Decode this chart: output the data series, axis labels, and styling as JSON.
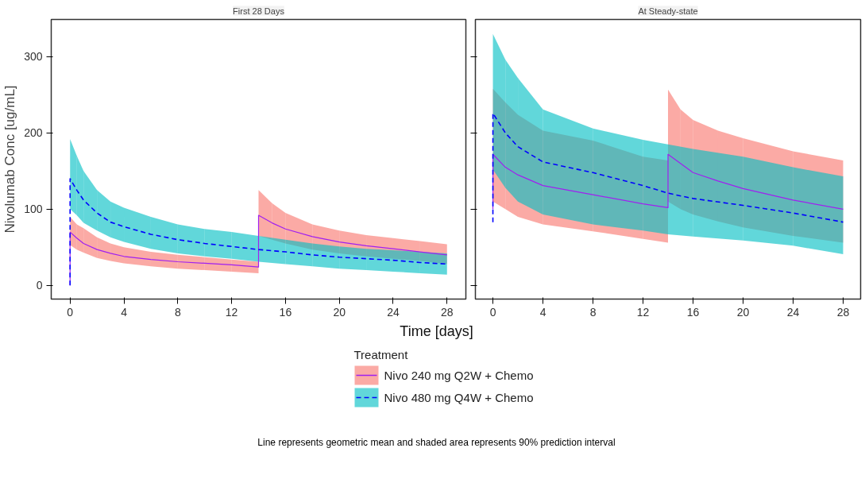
{
  "chart_data": [
    {
      "type": "line",
      "title": "First 28 Days",
      "xlabel": "Time [days]",
      "ylabel": "Nivolumab Conc [ug/mL]",
      "legend_title": "Treatment",
      "legend": "bottom",
      "grid": false,
      "xlim": [
        -1.4,
        29.4
      ],
      "xticks": [
        0,
        4,
        8,
        12,
        16,
        20,
        24,
        28
      ],
      "ylim": [
        -18,
        349
      ],
      "yticks": [
        0,
        100,
        200,
        300
      ],
      "annotations": [
        "Line represents geometric mean and shaded area represents 90% prediction interval"
      ],
      "series": [
        {
          "name": "Nivo 240 mg Q2W + Chemo",
          "color": "#a020f0",
          "colors": [
            "#f8766d",
            "#f8766d",
            "#f8766d",
            "#f8766d",
            "#f8766d",
            "#f8766d",
            "#f8766d",
            "#f8766d",
            "#f8766d",
            "#f8766d",
            "#f8766d",
            "#f8766d",
            "#f8766d",
            "#f8766d",
            "#f8766d",
            "#f8766d",
            "#f8766d",
            "#f8766d",
            "#f8766d",
            "#f8766d",
            "#f8766d"
          ],
          "line_style": "solid",
          "x": [
            0,
            0,
            0.5,
            1,
            2,
            3,
            4,
            6,
            8,
            10,
            12,
            14,
            14,
            15,
            16,
            18,
            20,
            22,
            24,
            26,
            28
          ],
          "values": [
            0,
            70,
            62,
            55,
            47,
            42,
            38,
            34,
            31,
            29,
            27,
            24,
            92,
            82,
            74,
            64,
            57,
            52,
            48,
            44,
            40
          ],
          "upper": [
            null,
            90,
            80,
            75,
            63,
            55,
            50,
            44,
            40,
            37,
            34,
            31,
            125,
            108,
            95,
            80,
            72,
            66,
            62,
            58,
            54
          ],
          "lower": [
            null,
            53,
            47,
            43,
            36,
            32,
            29,
            25,
            22,
            20,
            18,
            16,
            65,
            60,
            55,
            47,
            42,
            38,
            35,
            32,
            28
          ]
        },
        {
          "name": "Nivo 480 mg Q4W + Chemo",
          "color": "#0000ff",
          "colors": [
            "#00bfc4",
            "#00bfc4",
            "#00bfc4",
            "#00bfc4",
            "#00bfc4",
            "#00bfc4",
            "#00bfc4",
            "#00bfc4",
            "#00bfc4",
            "#00bfc4",
            "#00bfc4",
            "#00bfc4",
            "#00bfc4",
            "#00bfc4",
            "#00bfc4",
            "#00bfc4",
            "#00bfc4",
            "#00bfc4",
            "#00bfc4"
          ],
          "line_style": "dashed",
          "x": [
            0,
            0,
            0.5,
            1,
            2,
            3,
            4,
            6,
            8,
            10,
            12,
            14,
            16,
            18,
            20,
            22,
            24,
            26,
            28
          ],
          "values": [
            0,
            140,
            125,
            112,
            95,
            83,
            77,
            67,
            60,
            55,
            51,
            47,
            44,
            40,
            37,
            35,
            33,
            30,
            28
          ],
          "upper": [
            null,
            192,
            170,
            150,
            125,
            110,
            102,
            90,
            80,
            74,
            70,
            65,
            60,
            55,
            51,
            48,
            46,
            44,
            42
          ],
          "lower": [
            null,
            100,
            92,
            82,
            72,
            63,
            57,
            48,
            42,
            38,
            35,
            31,
            28,
            25,
            22,
            20,
            18,
            16,
            14
          ]
        }
      ]
    },
    {
      "type": "line",
      "title": "At Steady-state",
      "grid": false,
      "tick_labels": "x",
      "xlim": [
        -1.4,
        29.4
      ],
      "xticks": [
        0,
        4,
        8,
        12,
        16,
        20,
        24,
        28
      ],
      "ylim": [
        -18,
        349
      ],
      "yticks": [
        0,
        100,
        200,
        300
      ],
      "series": [
        {
          "color": "#a020f0",
          "colors": [
            "#f8766d",
            "#f8766d",
            "#f8766d",
            "#f8766d",
            "#f8766d",
            "#f8766d",
            "#f8766d",
            "#f8766d",
            "#f8766d",
            "#f8766d",
            "#f8766d",
            "#f8766d",
            "#f8766d",
            "#f8766d",
            "#f8766d"
          ],
          "line_style": "solid",
          "x": [
            0,
            0,
            1,
            2,
            4,
            8,
            12,
            14,
            14,
            15,
            16,
            18,
            20,
            24,
            28
          ],
          "values": [
            100,
            172,
            155,
            145,
            131,
            119,
            107,
            102,
            172,
            160,
            148,
            137,
            127,
            112,
            100
          ],
          "upper": [
            null,
            258,
            240,
            224,
            203,
            190,
            169,
            164,
            257,
            231,
            217,
            203,
            193,
            176,
            164
          ],
          "lower": [
            null,
            110,
            100,
            90,
            80,
            71,
            61,
            56,
            110,
            100,
            93,
            84,
            76,
            65,
            56
          ]
        },
        {
          "color": "#0000ff",
          "colors": [
            "#00bfc4",
            "#00bfc4",
            "#00bfc4",
            "#00bfc4",
            "#00bfc4",
            "#00bfc4",
            "#00bfc4",
            "#00bfc4",
            "#00bfc4",
            "#00bfc4",
            "#00bfc4",
            "#00bfc4"
          ],
          "line_style": "dashed",
          "x": [
            0,
            0,
            1,
            2,
            4,
            8,
            12,
            14,
            16,
            20,
            24,
            28
          ],
          "values": [
            83,
            226,
            200,
            182,
            162,
            148,
            131,
            121,
            114,
            105,
            95,
            83
          ],
          "upper": [
            null,
            330,
            296,
            272,
            231,
            206,
            191,
            185,
            179,
            169,
            155,
            143
          ],
          "lower": [
            null,
            152,
            128,
            110,
            93,
            80,
            72,
            67,
            64,
            59,
            52,
            41
          ]
        }
      ]
    }
  ]
}
